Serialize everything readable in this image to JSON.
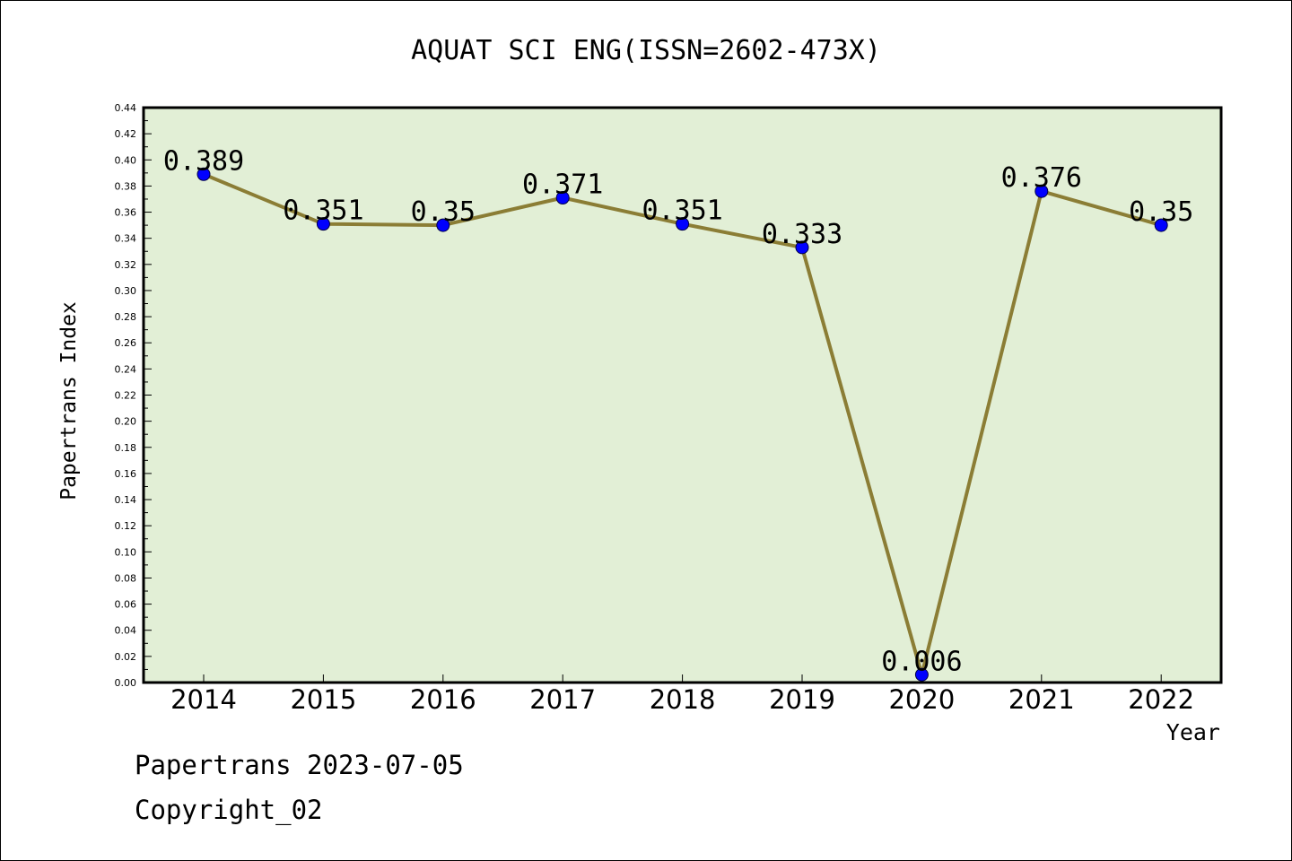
{
  "chart_data": {
    "type": "line",
    "title": "AQUAT SCI ENG(ISSN=2602-473X)",
    "xlabel": "Year",
    "ylabel": "Papertrans Index",
    "categories": [
      "2014",
      "2015",
      "2016",
      "2017",
      "2018",
      "2019",
      "2020",
      "2021",
      "2022"
    ],
    "series": [
      {
        "values": [
          0.389,
          0.351,
          0.35,
          0.371,
          0.351,
          0.333,
          0.006,
          0.376,
          0.35
        ]
      }
    ],
    "data_labels": [
      "0.389",
      "0.351",
      "0.35",
      "0.371",
      "0.351",
      "0.333",
      "0.006",
      "0.376",
      "0.35"
    ],
    "ylim": [
      0,
      0.44
    ],
    "ytick_labels": [
      "0.00",
      "0.02",
      "0.04",
      "0.06",
      "0.08",
      "0.10",
      "0.12",
      "0.14",
      "0.16",
      "0.18",
      "0.20",
      "0.22",
      "0.24",
      "0.26",
      "0.28",
      "0.30",
      "0.32",
      "0.34",
      "0.36",
      "0.38",
      "0.40",
      "0.42",
      "0.44"
    ],
    "grid": false,
    "colors": {
      "plot_background": "#e2efd6",
      "line": "#8b7d35",
      "marker": "#0000ff"
    }
  },
  "footer": {
    "date_line": "Papertrans 2023-07-05",
    "copyright": "Copyright_02"
  }
}
